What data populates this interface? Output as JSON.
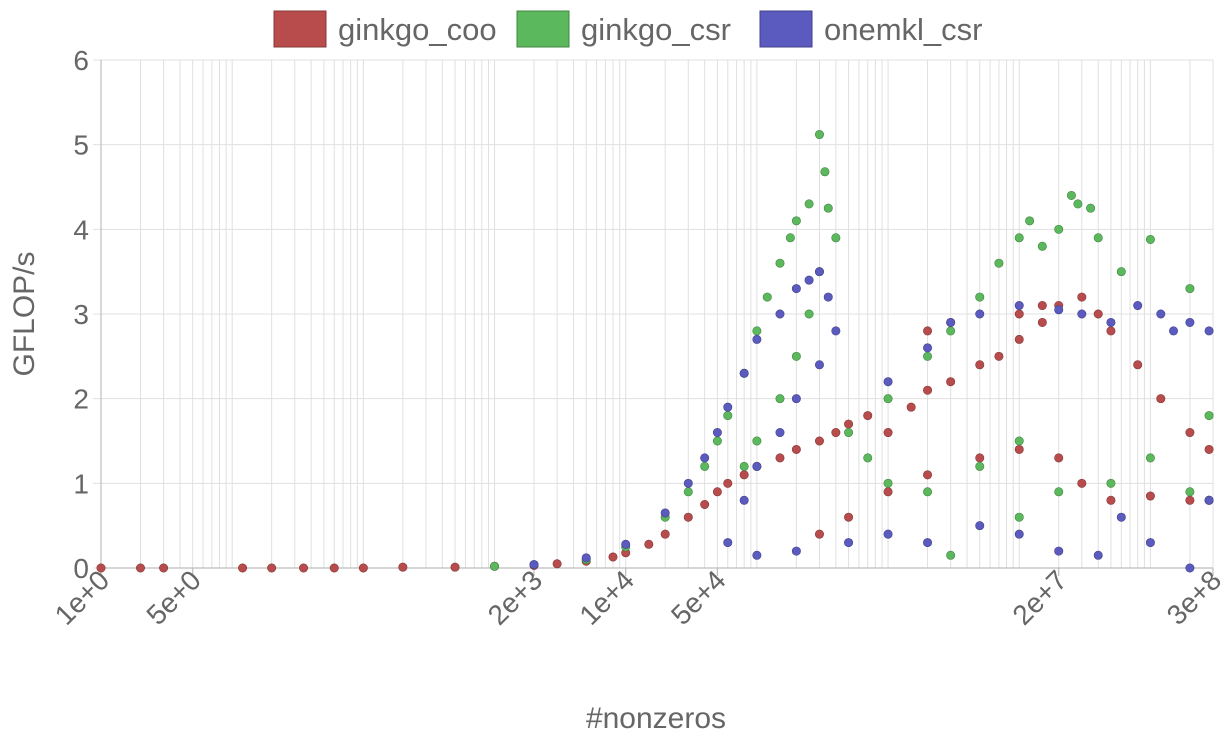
{
  "chart_data": {
    "type": "scatter",
    "xlabel": "#nonzeros",
    "ylabel": "GFLOP/s",
    "x_scale": "log",
    "xlim": [
      1,
      300000000
    ],
    "ylim": [
      0,
      6
    ],
    "y_ticks": [
      0,
      1,
      2,
      3,
      4,
      5,
      6
    ],
    "x_tick_labels": [
      {
        "value": 1,
        "label": "1e+0"
      },
      {
        "value": 5,
        "label": "5e+0"
      },
      {
        "value": 2000,
        "label": "2e+3"
      },
      {
        "value": 10000,
        "label": "1e+4"
      },
      {
        "value": 50000,
        "label": "5e+4"
      },
      {
        "value": 20000000,
        "label": "2e+7"
      },
      {
        "value": 300000000,
        "label": "3e+8"
      }
    ],
    "grid": true,
    "legend_position": "top",
    "series": [
      {
        "name": "ginkgo_coo",
        "color": "#b84c4c",
        "points": [
          [
            1,
            0.0
          ],
          [
            2,
            0.0
          ],
          [
            3,
            0.0
          ],
          [
            12,
            0.0
          ],
          [
            20,
            0.0
          ],
          [
            35,
            0.0
          ],
          [
            60,
            0.0
          ],
          [
            100,
            0.0
          ],
          [
            200,
            0.01
          ],
          [
            500,
            0.01
          ],
          [
            1000,
            0.02
          ],
          [
            2000,
            0.03
          ],
          [
            3000,
            0.05
          ],
          [
            5000,
            0.08
          ],
          [
            8000,
            0.13
          ],
          [
            10000,
            0.18
          ],
          [
            15000,
            0.28
          ],
          [
            20000,
            0.4
          ],
          [
            30000,
            0.6
          ],
          [
            40000,
            0.75
          ],
          [
            50000,
            0.9
          ],
          [
            60000,
            1.0
          ],
          [
            80000,
            1.1
          ],
          [
            100000,
            1.2
          ],
          [
            150000,
            1.3
          ],
          [
            200000,
            1.4
          ],
          [
            300000,
            1.5
          ],
          [
            400000,
            1.6
          ],
          [
            500000,
            1.7
          ],
          [
            700000,
            1.8
          ],
          [
            1000000,
            1.6
          ],
          [
            1500000,
            1.9
          ],
          [
            2000000,
            2.1
          ],
          [
            3000000,
            2.2
          ],
          [
            5000000,
            2.4
          ],
          [
            7000000,
            2.5
          ],
          [
            10000000,
            2.7
          ],
          [
            15000000,
            2.9
          ],
          [
            20000000,
            3.1
          ],
          [
            30000000,
            3.2
          ],
          [
            50000000,
            2.8
          ],
          [
            80000000,
            2.4
          ],
          [
            120000000,
            2.0
          ],
          [
            200000000,
            1.6
          ],
          [
            280000000,
            1.4
          ],
          [
            300000,
            0.4
          ],
          [
            500000,
            0.6
          ],
          [
            1000000,
            0.9
          ],
          [
            2000000,
            1.1
          ],
          [
            5000000,
            1.3
          ],
          [
            10000000,
            1.4
          ],
          [
            20000000,
            1.3
          ],
          [
            30000000,
            1.0
          ],
          [
            50000000,
            0.8
          ],
          [
            100000000,
            0.85
          ],
          [
            200000000,
            0.8
          ],
          [
            280000000,
            0.8
          ],
          [
            2000000,
            2.8
          ],
          [
            3000000,
            2.9
          ],
          [
            10000000,
            3.0
          ],
          [
            15000000,
            3.1
          ],
          [
            40000000,
            3.0
          ]
        ]
      },
      {
        "name": "ginkgo_csr",
        "color": "#5cb85c",
        "points": [
          [
            1000,
            0.02
          ],
          [
            2000,
            0.04
          ],
          [
            5000,
            0.1
          ],
          [
            10000,
            0.25
          ],
          [
            20000,
            0.6
          ],
          [
            30000,
            0.9
          ],
          [
            40000,
            1.2
          ],
          [
            50000,
            1.5
          ],
          [
            60000,
            1.8
          ],
          [
            80000,
            2.3
          ],
          [
            100000,
            2.8
          ],
          [
            120000,
            3.2
          ],
          [
            150000,
            3.6
          ],
          [
            180000,
            3.9
          ],
          [
            200000,
            4.1
          ],
          [
            250000,
            4.3
          ],
          [
            300000,
            5.12
          ],
          [
            330000,
            4.68
          ],
          [
            350000,
            4.25
          ],
          [
            400000,
            3.9
          ],
          [
            300000,
            3.5
          ],
          [
            250000,
            3.0
          ],
          [
            200000,
            2.5
          ],
          [
            150000,
            2.0
          ],
          [
            100000,
            1.5
          ],
          [
            80000,
            1.2
          ],
          [
            500000,
            1.6
          ],
          [
            700000,
            1.3
          ],
          [
            1000000,
            2.0
          ],
          [
            2000000,
            2.5
          ],
          [
            3000000,
            2.8
          ],
          [
            5000000,
            3.2
          ],
          [
            7000000,
            3.6
          ],
          [
            10000000,
            3.9
          ],
          [
            12000000,
            4.1
          ],
          [
            15000000,
            3.8
          ],
          [
            20000000,
            4.0
          ],
          [
            25000000,
            4.4
          ],
          [
            28000000,
            4.3
          ],
          [
            35000000,
            4.25
          ],
          [
            40000000,
            3.9
          ],
          [
            60000000,
            3.5
          ],
          [
            100000000,
            3.88
          ],
          [
            200000000,
            3.3
          ],
          [
            280000000,
            1.8
          ],
          [
            1000000,
            1.0
          ],
          [
            2000000,
            0.9
          ],
          [
            5000000,
            1.2
          ],
          [
            10000000,
            1.5
          ],
          [
            20000000,
            0.9
          ],
          [
            50000000,
            1.0
          ],
          [
            100000000,
            1.3
          ],
          [
            200000000,
            0.9
          ],
          [
            280000000,
            0.8
          ],
          [
            3000000,
            0.15
          ],
          [
            10000000,
            0.6
          ]
        ]
      },
      {
        "name": "onemkl_csr",
        "color": "#5b5bbf",
        "points": [
          [
            2000,
            0.04
          ],
          [
            5000,
            0.12
          ],
          [
            10000,
            0.28
          ],
          [
            20000,
            0.65
          ],
          [
            30000,
            1.0
          ],
          [
            40000,
            1.3
          ],
          [
            50000,
            1.6
          ],
          [
            60000,
            1.9
          ],
          [
            80000,
            2.3
          ],
          [
            100000,
            2.7
          ],
          [
            150000,
            3.0
          ],
          [
            200000,
            3.3
          ],
          [
            250000,
            3.4
          ],
          [
            300000,
            3.5
          ],
          [
            350000,
            3.2
          ],
          [
            400000,
            2.8
          ],
          [
            300000,
            2.4
          ],
          [
            200000,
            2.0
          ],
          [
            150000,
            1.6
          ],
          [
            100000,
            1.2
          ],
          [
            80000,
            0.8
          ],
          [
            60000,
            0.3
          ],
          [
            100000,
            0.15
          ],
          [
            200000,
            0.2
          ],
          [
            500000,
            0.3
          ],
          [
            1000000,
            0.4
          ],
          [
            2000000,
            0.3
          ],
          [
            1000000,
            2.2
          ],
          [
            2000000,
            2.6
          ],
          [
            3000000,
            2.9
          ],
          [
            5000000,
            3.0
          ],
          [
            10000000,
            3.1
          ],
          [
            20000000,
            3.05
          ],
          [
            30000000,
            3.0
          ],
          [
            50000000,
            2.9
          ],
          [
            80000000,
            3.1
          ],
          [
            120000000,
            3.0
          ],
          [
            150000000,
            2.8
          ],
          [
            200000000,
            2.9
          ],
          [
            280000000,
            2.8
          ],
          [
            5000000,
            0.5
          ],
          [
            10000000,
            0.4
          ],
          [
            20000000,
            0.2
          ],
          [
            40000000,
            0.15
          ],
          [
            60000000,
            0.6
          ],
          [
            100000000,
            0.3
          ],
          [
            200000000,
            0.0
          ],
          [
            280000000,
            0.8
          ]
        ]
      }
    ]
  }
}
